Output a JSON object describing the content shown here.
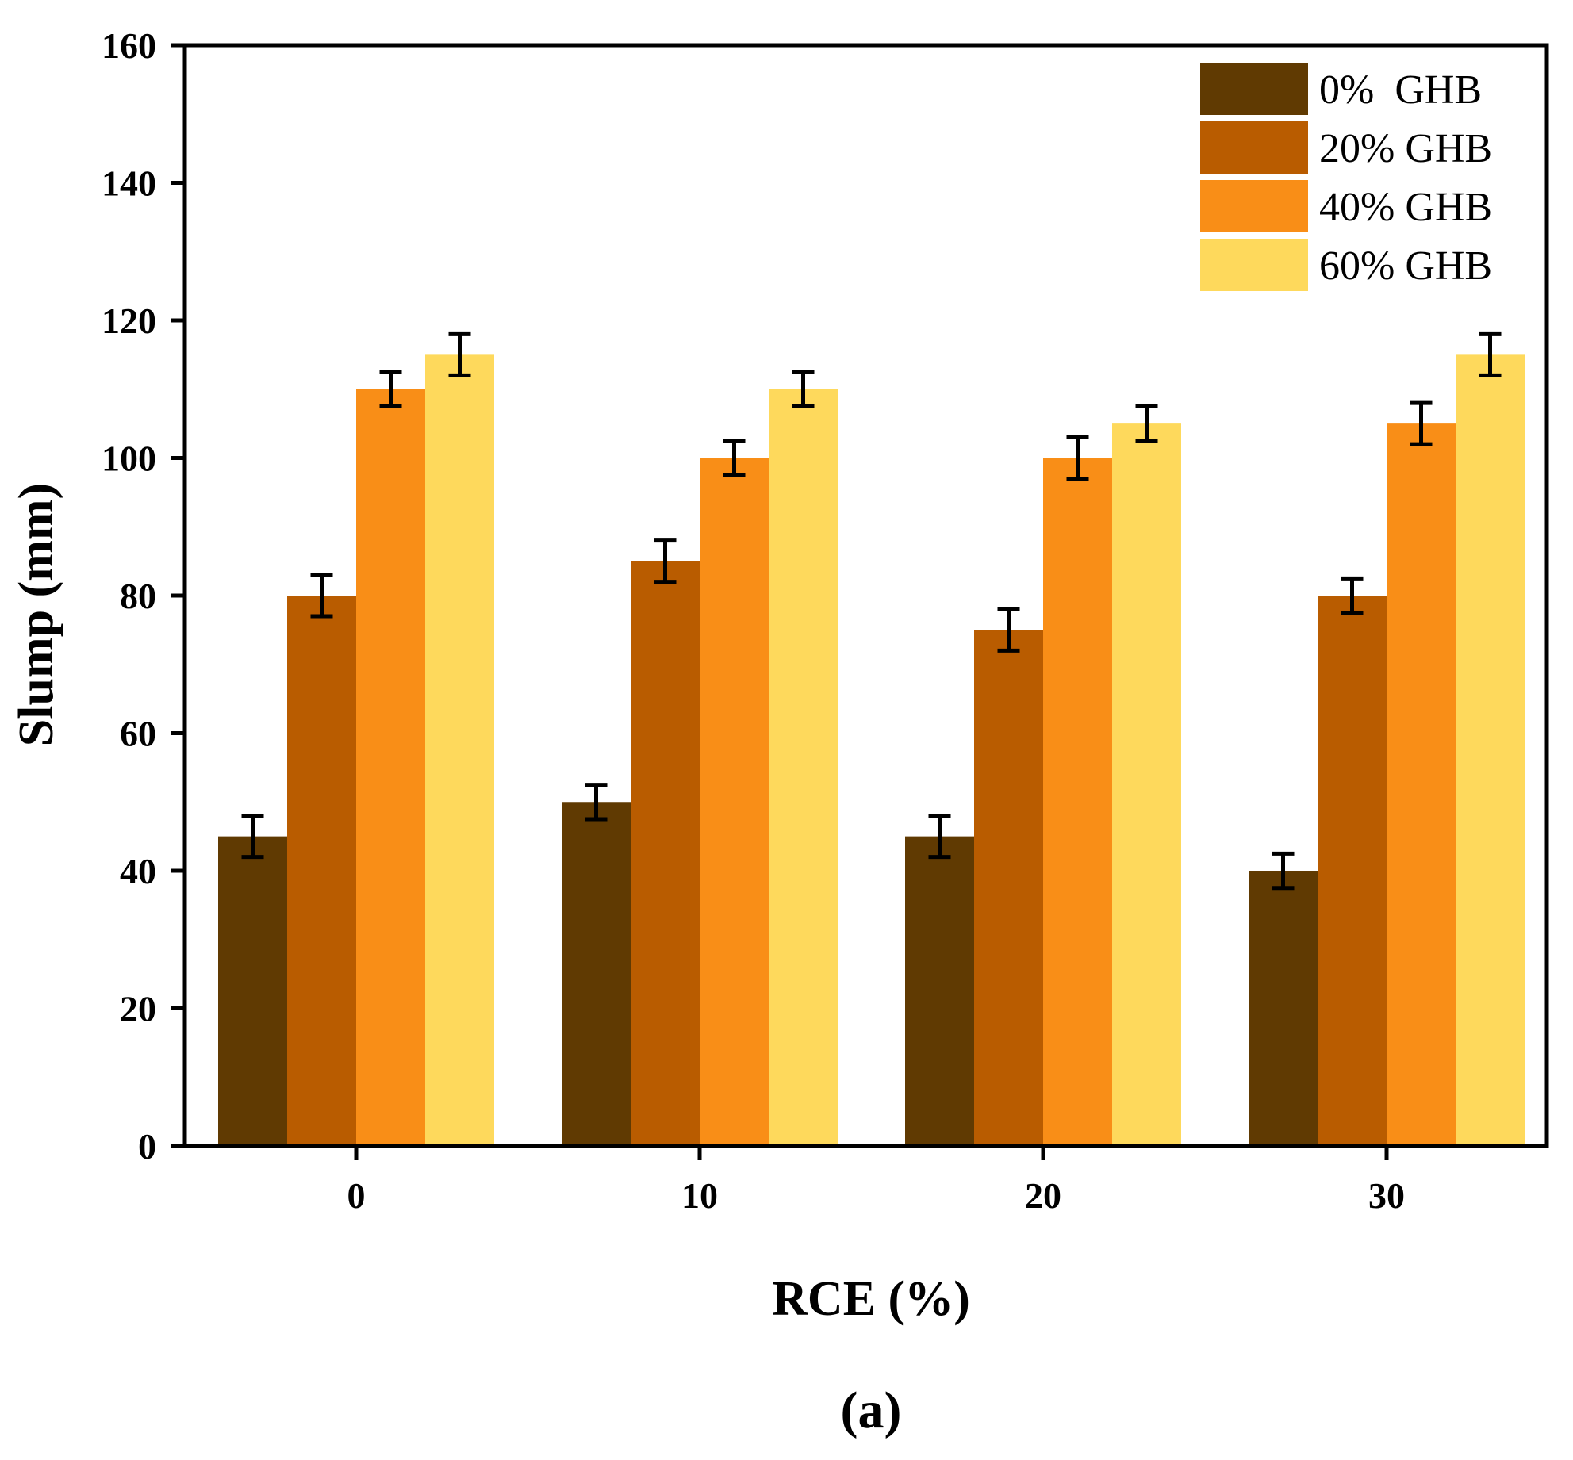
{
  "chart_data": {
    "type": "bar",
    "title": "",
    "xlabel": "RCE (%)",
    "ylabel": "Slump (mm)",
    "caption": "(a)",
    "ylim": [
      0,
      160
    ],
    "yticks": [
      0,
      20,
      40,
      60,
      80,
      100,
      120,
      140,
      160
    ],
    "categories": [
      "0",
      "10",
      "20",
      "30"
    ],
    "legend_position": "top-right",
    "series": [
      {
        "name": "0%  GHB",
        "color": "#603a02",
        "values": [
          45,
          50,
          45,
          40
        ],
        "errors": [
          3.0,
          2.5,
          3.0,
          2.5
        ]
      },
      {
        "name": "20% GHB",
        "color": "#b95c00",
        "values": [
          80,
          85,
          75,
          80
        ],
        "errors": [
          3.0,
          3.0,
          3.0,
          2.5
        ]
      },
      {
        "name": "40% GHB",
        "color": "#f98e17",
        "values": [
          110,
          100,
          100,
          105
        ],
        "errors": [
          2.5,
          2.5,
          3.0,
          3.0
        ]
      },
      {
        "name": "60% GHB",
        "color": "#fed95c",
        "values": [
          115,
          110,
          105,
          115
        ],
        "errors": [
          3.0,
          2.5,
          2.5,
          3.0
        ]
      }
    ]
  }
}
